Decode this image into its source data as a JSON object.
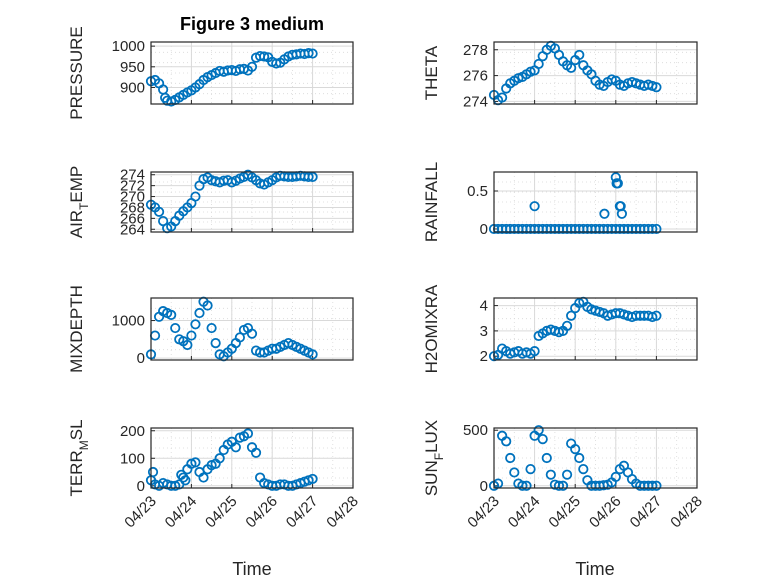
{
  "figure": {
    "title": "Figure 3 medium",
    "xlabel": "Time"
  },
  "colors": {
    "marker": "#0072BD",
    "axis": "#262626",
    "grid": "#d9d9d9",
    "background": "#ffffff"
  },
  "chart_data": [
    {
      "type": "scatter",
      "id": "pressure",
      "ylabel": "PRESSURE",
      "yticks": [
        "1000",
        "950",
        "900"
      ],
      "ylim": [
        860,
        1010
      ],
      "xticks": [],
      "xlim": [
        "04/23",
        "04/28"
      ],
      "grid": true,
      "series": [
        {
          "x": [
            0,
            0.1,
            0.2,
            0.3,
            0.35,
            0.4,
            0.5,
            0.6,
            0.7,
            0.8,
            0.9,
            1.0,
            1.1,
            1.2,
            1.3,
            1.4,
            1.5,
            1.6,
            1.7,
            1.8,
            1.9,
            2.0,
            2.1,
            2.2,
            2.3,
            2.4,
            2.5,
            2.6,
            2.7,
            2.8,
            2.9,
            3.0,
            3.1,
            3.2,
            3.3,
            3.4,
            3.5,
            3.6,
            3.7,
            3.8,
            3.9,
            4.0
          ],
          "y": [
            915,
            918,
            910,
            895,
            875,
            868,
            866,
            870,
            876,
            882,
            888,
            893,
            900,
            908,
            918,
            925,
            930,
            935,
            940,
            938,
            941,
            942,
            940,
            944,
            945,
            941,
            950,
            972,
            976,
            975,
            973,
            962,
            958,
            960,
            968,
            975,
            979,
            980,
            982,
            981,
            983,
            982
          ]
        }
      ]
    },
    {
      "type": "scatter",
      "id": "theta",
      "ylabel": "THETA",
      "yticks": [
        "278",
        "276",
        "274"
      ],
      "ylim": [
        273.8,
        278.6
      ],
      "xticks": [],
      "xlim": [
        "04/23",
        "04/28"
      ],
      "grid": true,
      "series": [
        {
          "x": [
            0,
            0.1,
            0.2,
            0.3,
            0.4,
            0.5,
            0.6,
            0.7,
            0.8,
            0.9,
            1.0,
            1.1,
            1.2,
            1.3,
            1.4,
            1.5,
            1.6,
            1.7,
            1.8,
            1.9,
            2.0,
            2.1,
            2.2,
            2.3,
            2.4,
            2.5,
            2.6,
            2.7,
            2.8,
            2.9,
            3.0,
            3.1,
            3.2,
            3.3,
            3.4,
            3.5,
            3.6,
            3.7,
            3.8,
            3.9,
            4.0
          ],
          "y": [
            274.5,
            274.1,
            274.3,
            275.0,
            275.4,
            275.6,
            275.8,
            275.9,
            276.1,
            276.3,
            276.4,
            276.9,
            277.5,
            278.0,
            278.3,
            278.1,
            277.6,
            277.1,
            276.8,
            276.6,
            277.2,
            277.6,
            276.8,
            276.4,
            276.1,
            275.6,
            275.3,
            275.2,
            275.5,
            275.7,
            275.6,
            275.3,
            275.2,
            275.4,
            275.5,
            275.4,
            275.3,
            275.2,
            275.3,
            275.2,
            275.1
          ]
        }
      ]
    },
    {
      "type": "scatter",
      "id": "air_temp",
      "ylabel": "AIR_TEMP",
      "ylabel_main": "AIR",
      "ylabel_sub": "T",
      "ylabel_tail": "EMP",
      "yticks": [
        "274",
        "272",
        "270",
        "268",
        "266",
        "264"
      ],
      "ylim": [
        263.5,
        274.5
      ],
      "xticks": [],
      "xlim": [
        "04/23",
        "04/28"
      ],
      "grid": true,
      "series": [
        {
          "x": [
            0,
            0.1,
            0.2,
            0.3,
            0.4,
            0.5,
            0.6,
            0.7,
            0.8,
            0.9,
            1.0,
            1.1,
            1.2,
            1.3,
            1.4,
            1.5,
            1.6,
            1.7,
            1.8,
            1.9,
            2.0,
            2.1,
            2.2,
            2.3,
            2.4,
            2.5,
            2.6,
            2.7,
            2.8,
            2.9,
            3.0,
            3.1,
            3.2,
            3.3,
            3.4,
            3.5,
            3.6,
            3.7,
            3.8,
            3.9,
            4.0
          ],
          "y": [
            268.5,
            268.0,
            267.2,
            265.5,
            264.2,
            264.5,
            265.5,
            266.5,
            267.3,
            268.0,
            268.8,
            270.0,
            272.0,
            273.2,
            273.5,
            273.0,
            272.8,
            272.6,
            272.9,
            273.0,
            272.6,
            272.9,
            273.3,
            273.6,
            274.0,
            273.5,
            273.0,
            272.4,
            272.2,
            272.6,
            273.0,
            273.5,
            273.8,
            273.7,
            273.6,
            273.6,
            273.7,
            273.8,
            273.7,
            273.6,
            273.6
          ]
        }
      ]
    },
    {
      "type": "scatter",
      "id": "rainfall",
      "ylabel": "RAINFALL",
      "yticks": [
        "0.5",
        "0"
      ],
      "ylim": [
        -0.04,
        0.75
      ],
      "xticks": [],
      "xlim": [
        "04/23",
        "04/28"
      ],
      "grid": true,
      "series": [
        {
          "x": [
            0,
            0.1,
            0.2,
            0.3,
            0.4,
            0.5,
            0.6,
            0.7,
            0.8,
            0.9,
            1.0,
            1.1,
            1.2,
            1.3,
            1.4,
            1.5,
            1.6,
            1.7,
            1.8,
            1.9,
            2.0,
            2.1,
            2.2,
            2.3,
            2.4,
            2.5,
            2.6,
            2.7,
            2.8,
            2.9,
            3.0,
            3.1,
            3.2,
            3.3,
            3.4,
            3.5,
            3.6,
            3.7,
            3.8,
            3.9,
            4.0,
            1.0,
            2.72,
            3.0,
            3.02,
            3.05,
            3.1,
            3.12,
            3.15
          ],
          "y": [
            0,
            0,
            0,
            0,
            0,
            0,
            0,
            0,
            0,
            0,
            0,
            0,
            0,
            0,
            0,
            0,
            0,
            0,
            0,
            0,
            0,
            0,
            0,
            0,
            0,
            0,
            0,
            0,
            0,
            0,
            0,
            0,
            0,
            0,
            0,
            0,
            0,
            0,
            0,
            0,
            0,
            0.3,
            0.2,
            0.68,
            0.6,
            0.6,
            0.3,
            0.3,
            0.2
          ]
        }
      ]
    },
    {
      "type": "scatter",
      "id": "mixdepth",
      "ylabel": "MIXDEPTH",
      "yticks": [
        "1000",
        "0"
      ],
      "ylim": [
        -50,
        1600
      ],
      "xticks": [],
      "xlim": [
        "04/23",
        "04/28"
      ],
      "grid": true,
      "series": [
        {
          "x": [
            0,
            0.1,
            0.2,
            0.3,
            0.4,
            0.5,
            0.6,
            0.7,
            0.8,
            0.9,
            1.0,
            1.1,
            1.2,
            1.3,
            1.4,
            1.5,
            1.6,
            1.7,
            1.8,
            1.9,
            2.0,
            2.1,
            2.2,
            2.3,
            2.4,
            2.5,
            2.6,
            2.7,
            2.8,
            2.9,
            3.0,
            3.1,
            3.2,
            3.3,
            3.4,
            3.5,
            3.6,
            3.7,
            3.8,
            3.9,
            4.0
          ],
          "y": [
            100,
            600,
            1100,
            1250,
            1200,
            1150,
            800,
            500,
            450,
            350,
            600,
            900,
            1200,
            1500,
            1400,
            800,
            400,
            100,
            50,
            150,
            250,
            400,
            550,
            750,
            800,
            650,
            200,
            150,
            150,
            200,
            250,
            250,
            300,
            350,
            400,
            350,
            300,
            250,
            200,
            150,
            100
          ]
        }
      ]
    },
    {
      "type": "scatter",
      "id": "h2omixra",
      "ylabel": "H2OMIXRA",
      "yticks": [
        "4",
        "3",
        "2"
      ],
      "ylim": [
        1.85,
        4.3
      ],
      "xticks": [],
      "xlim": [
        "04/23",
        "04/28"
      ],
      "grid": true,
      "series": [
        {
          "x": [
            0,
            0.1,
            0.2,
            0.3,
            0.4,
            0.5,
            0.6,
            0.7,
            0.8,
            0.9,
            1.0,
            1.1,
            1.2,
            1.3,
            1.4,
            1.5,
            1.6,
            1.7,
            1.8,
            1.9,
            2.0,
            2.1,
            2.2,
            2.3,
            2.4,
            2.5,
            2.6,
            2.7,
            2.8,
            2.9,
            3.0,
            3.1,
            3.2,
            3.3,
            3.4,
            3.5,
            3.6,
            3.7,
            3.8,
            3.9,
            4.0
          ],
          "y": [
            2.0,
            2.05,
            2.3,
            2.2,
            2.1,
            2.15,
            2.2,
            2.1,
            2.15,
            2.1,
            2.2,
            2.8,
            2.9,
            3.0,
            3.05,
            3.0,
            2.95,
            3.0,
            3.2,
            3.6,
            3.9,
            4.1,
            4.15,
            3.95,
            3.85,
            3.8,
            3.75,
            3.7,
            3.6,
            3.65,
            3.7,
            3.7,
            3.65,
            3.6,
            3.55,
            3.6,
            3.6,
            3.6,
            3.6,
            3.55,
            3.6
          ]
        }
      ]
    },
    {
      "type": "scatter",
      "id": "terr_msl",
      "ylabel": "TERR_MSL",
      "ylabel_main": "TERR",
      "ylabel_sub": "M",
      "ylabel_tail": "SL",
      "yticks": [
        "200",
        "100",
        "0"
      ],
      "ylim": [
        -8,
        210
      ],
      "xticks": [
        "04/23",
        "04/24",
        "04/25",
        "04/26",
        "04/27",
        "04/28"
      ],
      "xlim": [
        "04/23",
        "04/28"
      ],
      "grid": true,
      "series": [
        {
          "x": [
            0,
            0.1,
            0.2,
            0.3,
            0.4,
            0.5,
            0.6,
            0.7,
            0.8,
            0.9,
            1.0,
            1.1,
            1.2,
            1.3,
            1.4,
            1.5,
            1.6,
            1.7,
            1.8,
            1.9,
            2.0,
            2.1,
            2.2,
            2.3,
            2.4,
            2.5,
            2.6,
            2.7,
            2.8,
            2.9,
            3.0,
            3.1,
            3.2,
            3.3,
            3.4,
            3.5,
            3.6,
            3.7,
            3.8,
            3.9,
            4.0,
            0.05,
            0.75,
            0.85
          ],
          "y": [
            20,
            5,
            0,
            10,
            5,
            0,
            0,
            5,
            30,
            60,
            80,
            85,
            50,
            30,
            60,
            75,
            80,
            100,
            130,
            150,
            160,
            140,
            175,
            180,
            190,
            140,
            120,
            30,
            10,
            5,
            0,
            0,
            5,
            5,
            0,
            0,
            5,
            10,
            15,
            20,
            25,
            50,
            40,
            20
          ]
        }
      ]
    },
    {
      "type": "scatter",
      "id": "sun_flux",
      "ylabel": "SUN_FLUX",
      "ylabel_main": "SUN",
      "ylabel_sub": "F",
      "ylabel_tail": "LUX",
      "yticks": [
        "500",
        "0"
      ],
      "ylim": [
        -20,
        520
      ],
      "xticks": [
        "04/23",
        "04/24",
        "04/25",
        "04/26",
        "04/27",
        "04/28"
      ],
      "xlim": [
        "04/23",
        "04/28"
      ],
      "grid": true,
      "series": [
        {
          "x": [
            0,
            0.1,
            0.2,
            0.3,
            0.4,
            0.5,
            0.6,
            0.7,
            0.8,
            0.9,
            1.0,
            1.1,
            1.2,
            1.3,
            1.4,
            1.5,
            1.6,
            1.7,
            1.8,
            1.9,
            2.0,
            2.1,
            2.2,
            2.3,
            2.4,
            2.5,
            2.6,
            2.7,
            2.8,
            2.9,
            3.0,
            3.1,
            3.2,
            3.3,
            3.4,
            3.5,
            3.6,
            3.7,
            3.8,
            3.9,
            4.0
          ],
          "y": [
            0,
            20,
            450,
            400,
            250,
            120,
            20,
            0,
            0,
            150,
            450,
            500,
            420,
            250,
            100,
            10,
            0,
            0,
            100,
            380,
            330,
            250,
            150,
            50,
            0,
            0,
            0,
            5,
            10,
            30,
            80,
            150,
            180,
            120,
            60,
            20,
            0,
            0,
            0,
            0,
            0
          ]
        }
      ]
    }
  ]
}
